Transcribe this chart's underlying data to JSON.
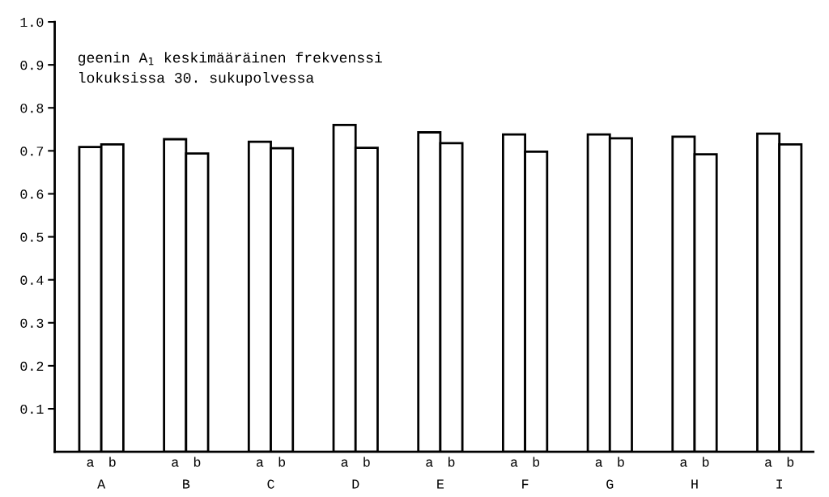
{
  "chart_data": {
    "type": "bar",
    "categories": [
      "A",
      "B",
      "C",
      "D",
      "E",
      "F",
      "G",
      "H",
      "I"
    ],
    "series": [
      {
        "name": "a",
        "color": "#ffffff",
        "values": [
          0.709,
          0.727,
          0.721,
          0.76,
          0.743,
          0.738,
          0.738,
          0.733,
          0.74
        ]
      },
      {
        "name": "b",
        "color": "#ffffff",
        "values": [
          0.715,
          0.694,
          0.706,
          0.707,
          0.718,
          0.698,
          0.729,
          0.692,
          0.715
        ]
      }
    ],
    "ylim": [
      0,
      1.0
    ],
    "yticks": [
      0.1,
      0.2,
      0.3,
      0.4,
      0.5,
      0.6,
      0.7,
      0.8,
      0.9,
      {
        "value": 1,
        "label": "1.0"
      }
    ],
    "annotations": [
      "geenin A$_{1}$ keskimääräinen frekvenssi\nlokuksissa 30. sukupolvessa"
    ],
    "grid": false,
    "legend": false
  }
}
